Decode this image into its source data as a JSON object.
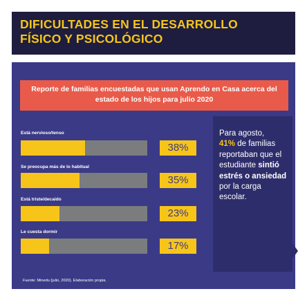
{
  "title": "DIFICULTADES EN EL DESARROLLO\nFÍSICO Y PSICOLÓGICO",
  "subtitle": "Reporte de familias encuestadas que usan Aprendo en Casa acerca del estado de los hijos para julio 2020",
  "colors": {
    "banner_bg": "#1e1d3f",
    "accent": "#f7c51a",
    "panel_bg": "#3b3a87",
    "header_bg": "#e85b4a",
    "track": "#7b7c7e",
    "callout_bg": "#2e2d6c"
  },
  "chart_data": {
    "type": "bar",
    "orientation": "horizontal",
    "title": "Reporte de familias encuestadas que usan Aprendo en Casa acerca del estado de los hijos para julio 2020",
    "categories": [
      "Está nervioso/tenso",
      "Se preocupa más de lo habitual",
      "Está triste/decaído",
      "Le cuesta dormir"
    ],
    "values": [
      38,
      35,
      23,
      17
    ],
    "data_labels": [
      "38%",
      "35%",
      "23%",
      "17%"
    ],
    "xlim": [
      0,
      75
    ],
    "grid": false,
    "legend": false
  },
  "callout": {
    "line1": "Para agosto,",
    "highlight": "41%",
    "line2": " de familias reportaban que el estudiante ",
    "bold": "sintió estrés o ansiedad",
    "line3": " por la carga escolar."
  },
  "source": "Fuente: Minedu (julio, 2020). Elaboración propia."
}
